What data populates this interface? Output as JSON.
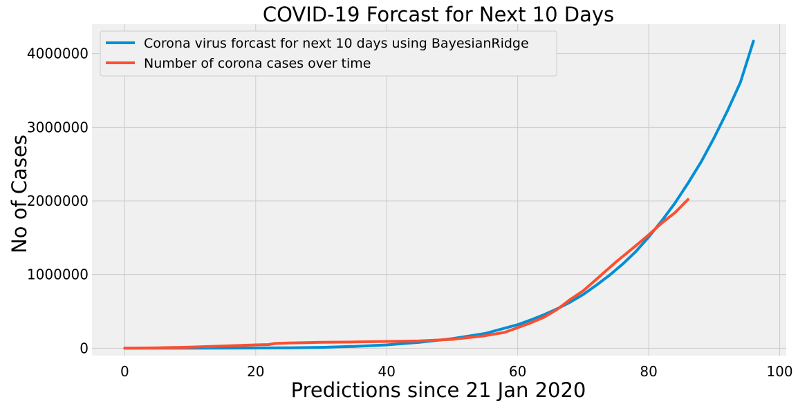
{
  "chart_data": {
    "type": "line",
    "title": "COVID-19 Forcast for Next 10 Days",
    "xlabel": "Predictions since 21 Jan 2020",
    "ylabel": "No of Cases",
    "xlim": [
      -5,
      101
    ],
    "ylim": [
      -100000,
      4400000
    ],
    "xticks": [
      0,
      20,
      40,
      60,
      80,
      100
    ],
    "yticks": [
      0,
      1000000,
      2000000,
      3000000,
      4000000
    ],
    "grid": true,
    "legend": "upper-left",
    "background": "#f0f0f0",
    "series": [
      {
        "name": "Corona virus forcast for next 10 days using BayesianRidge",
        "color": "#008fd5",
        "x": [
          0,
          5,
          10,
          15,
          20,
          25,
          30,
          35,
          40,
          45,
          50,
          55,
          60,
          62,
          64,
          66,
          68,
          70,
          72,
          74,
          76,
          78,
          80,
          82,
          84,
          86,
          88,
          90,
          92,
          94,
          96
        ],
        "y": [
          0,
          0,
          0,
          2000,
          3000,
          6000,
          12000,
          25000,
          45000,
          80000,
          130000,
          200000,
          320000,
          385000,
          455000,
          535000,
          625000,
          730000,
          855000,
          990000,
          1140000,
          1310000,
          1510000,
          1730000,
          1970000,
          2240000,
          2530000,
          2860000,
          3220000,
          3610000,
          4170000
        ]
      },
      {
        "name": "Number of corona cases over time",
        "color": "#fc4f30",
        "x": [
          0,
          5,
          10,
          15,
          20,
          22,
          23,
          25,
          30,
          35,
          40,
          45,
          50,
          55,
          58,
          60,
          62,
          64,
          66,
          68,
          70,
          72,
          75,
          78,
          80,
          82,
          84,
          86
        ],
        "y": [
          0,
          5000,
          15000,
          30000,
          45000,
          50000,
          65000,
          72000,
          80000,
          85000,
          92000,
          100000,
          120000,
          170000,
          215000,
          280000,
          345000,
          420000,
          525000,
          660000,
          780000,
          935000,
          1170000,
          1390000,
          1540000,
          1700000,
          1840000,
          2020000
        ]
      }
    ]
  }
}
